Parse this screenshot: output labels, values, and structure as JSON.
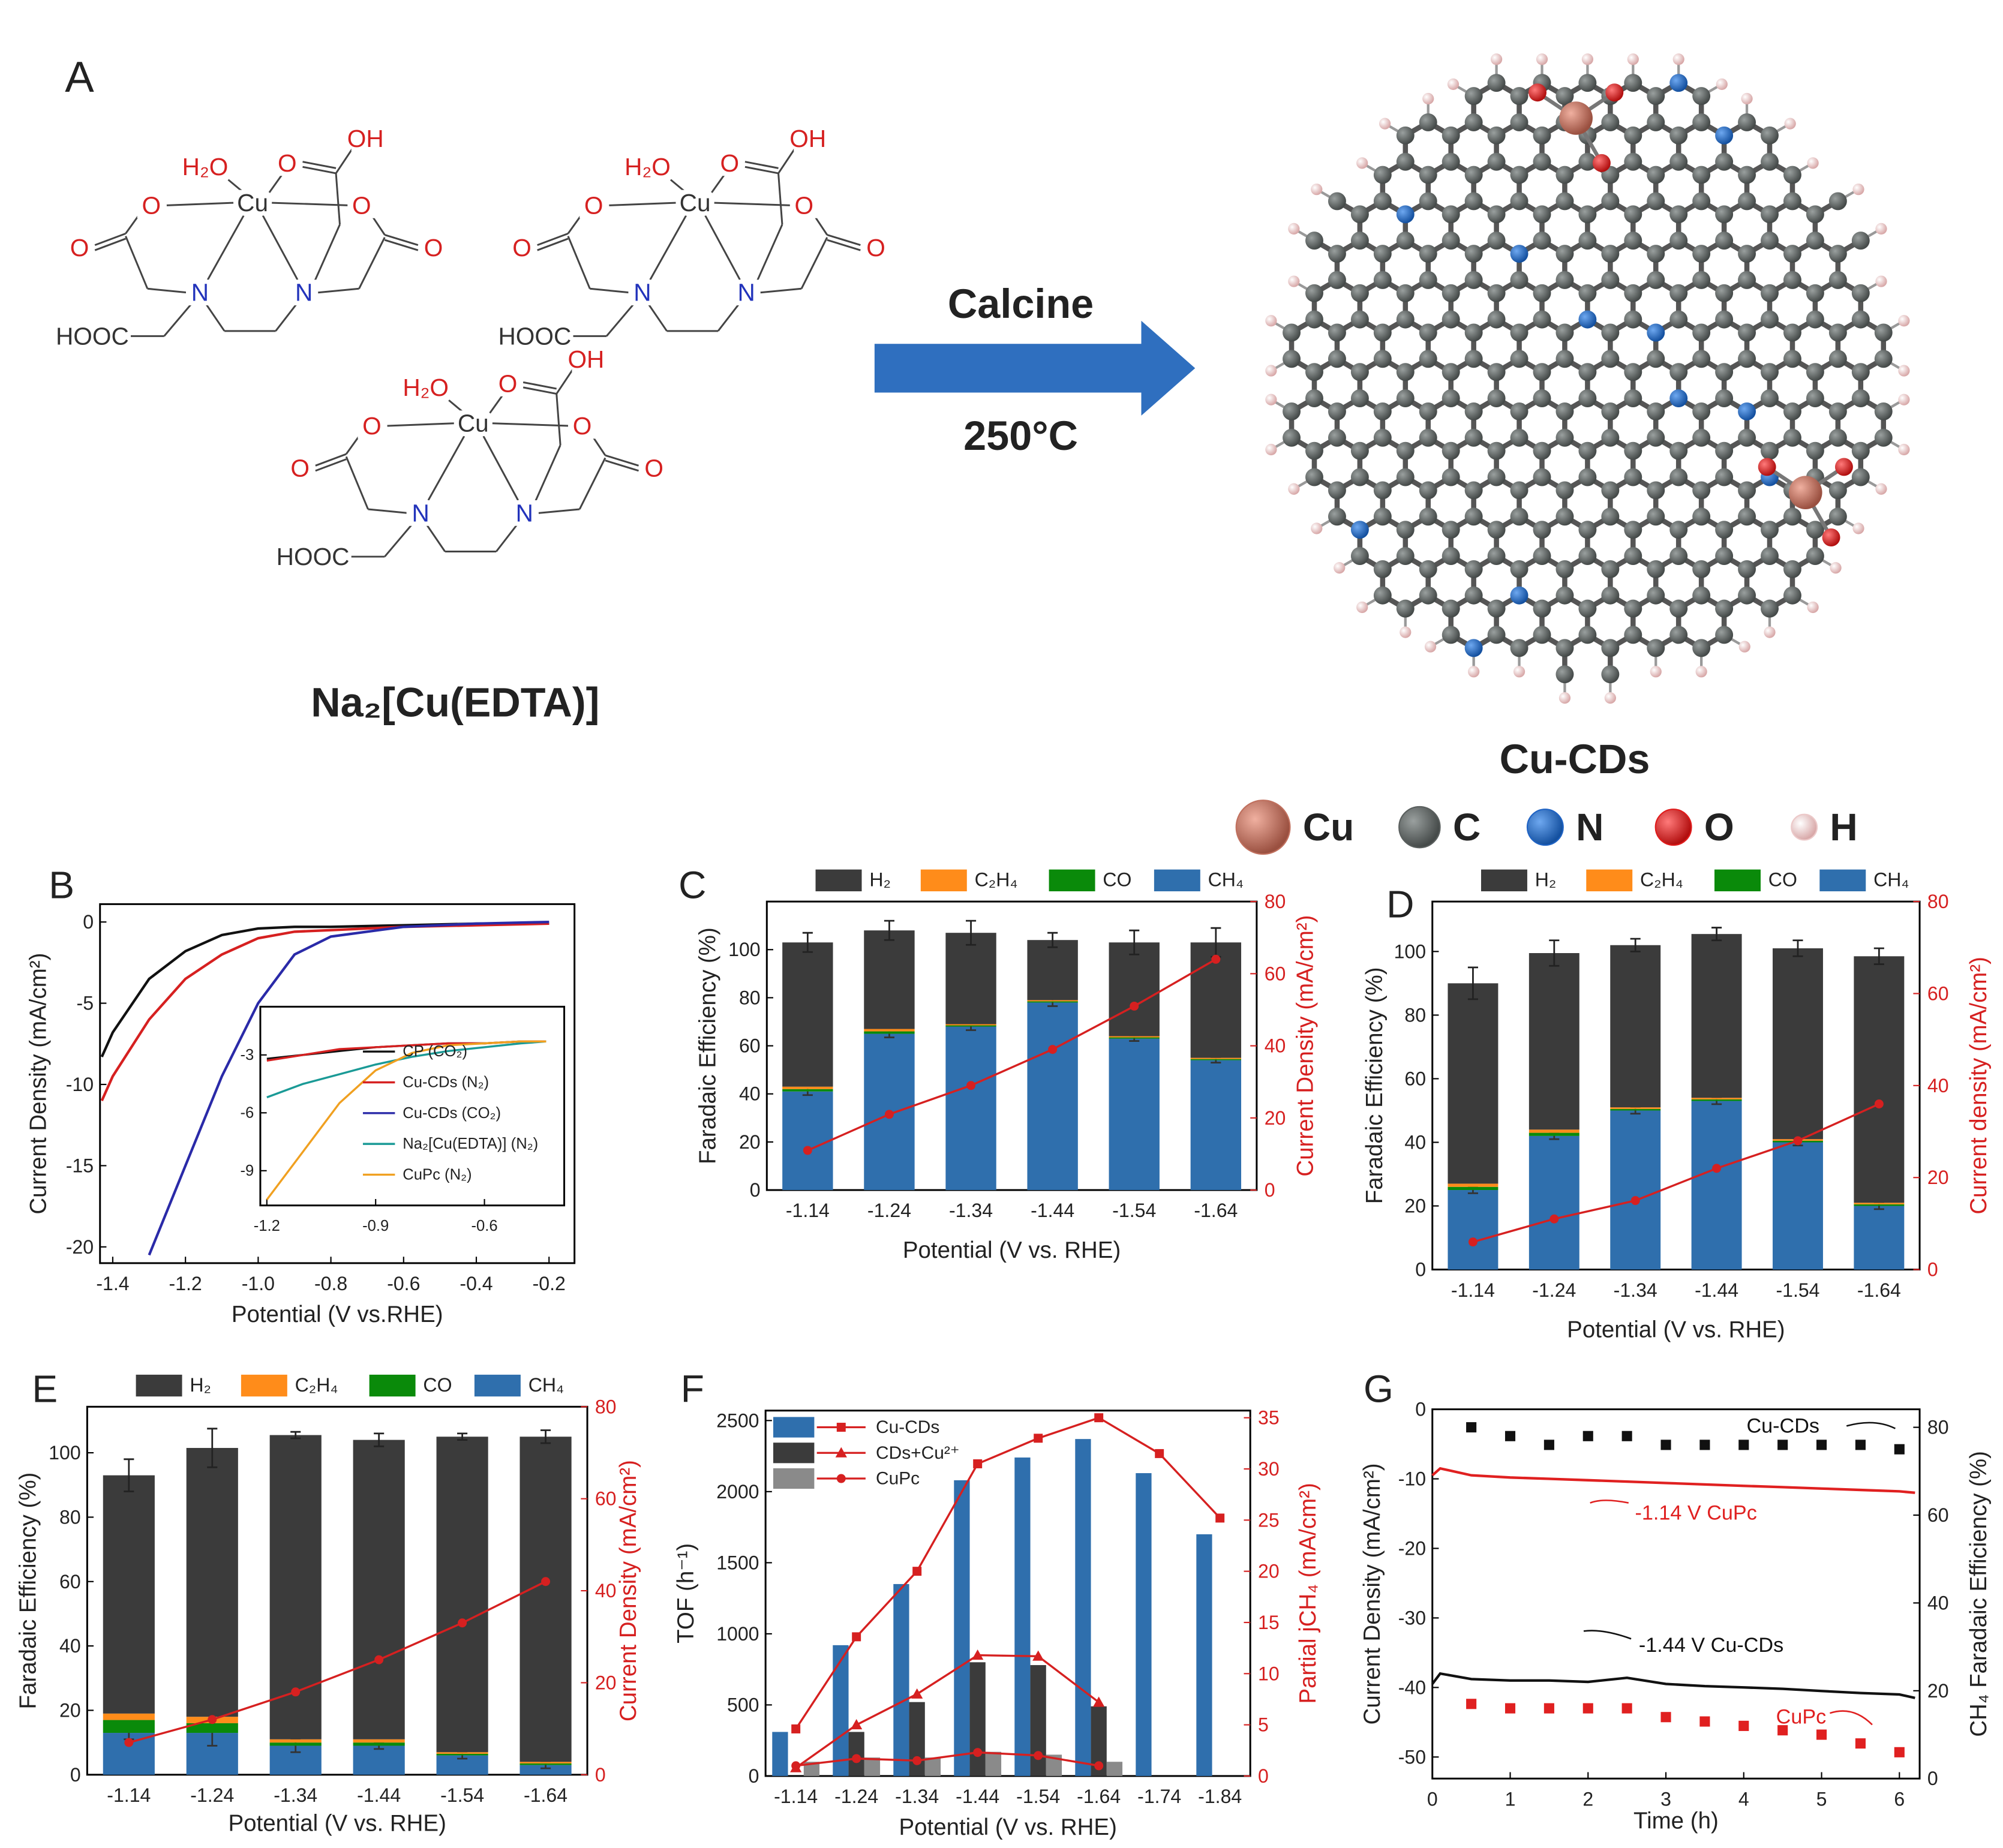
{
  "scheme": {
    "panel": "A",
    "structure_labels": [
      "H₂O",
      "Cu",
      "O",
      "OH",
      "O",
      "O",
      "O",
      "O",
      "N",
      "N",
      "HOOC"
    ],
    "precursor": "Na₂[Cu(EDTA)]",
    "arrow_top": "Calcine",
    "arrow_bottom": "250°C",
    "product": "Cu-CDs",
    "atoms": [
      {
        "name": "Cu",
        "color": "#c0705e"
      },
      {
        "name": "C",
        "color": "#5a5f5e"
      },
      {
        "name": "N",
        "color": "#1f63c4"
      },
      {
        "name": "O",
        "color": "#e01b1b"
      },
      {
        "name": "H",
        "color": "#ecc9c9"
      }
    ]
  },
  "chart_data": [
    {
      "type": "line",
      "panel": "B",
      "xlabel": "Potential (V vs.RHE)",
      "ylabel": "Current Density (mA/cm²)",
      "xlim": [
        -1.435,
        -0.13
      ],
      "xticks": [
        -1.4,
        -1.2,
        {
          "value": -1,
          "label": "-1.0"
        },
        -0.8,
        -0.6,
        -0.4,
        -0.2
      ],
      "ylim": [
        -21,
        1.1
      ],
      "yticks": [
        0,
        -5,
        -10,
        -15,
        -20
      ],
      "x": [
        -1.43,
        -1.4,
        -1.3,
        -1.2,
        -1.1,
        -1.0,
        -0.9,
        -0.8,
        -0.6,
        -0.4,
        -0.2
      ],
      "series": [
        {
          "color": "#111111",
          "values": [
            -8.3,
            -6.8,
            -3.5,
            -1.8,
            -0.8,
            -0.4,
            -0.3,
            -0.3,
            -0.2,
            -0.1,
            -0.1
          ]
        },
        {
          "color": "#d62020",
          "values": [
            -11,
            -9.5,
            -6,
            -3.5,
            -2,
            -1,
            -0.6,
            -0.5,
            -0.3,
            -0.2,
            -0.1
          ]
        },
        {
          "color": "#2a2aa8",
          "values": [
            null,
            null,
            -20.5,
            -15,
            -9.5,
            -5,
            -2,
            -0.9,
            -0.3,
            -0.1,
            0
          ]
        }
      ]
    },
    {
      "type": "line",
      "xlim": [
        -1.218,
        -0.38
      ],
      "xticks": [
        -1.2,
        -0.9,
        -0.6
      ],
      "ylim": [
        -10.8,
        -0.5
      ],
      "yticks": [
        -3,
        -6,
        -9
      ],
      "x": [
        -1.2,
        -1.1,
        -1.0,
        -0.9,
        -0.8,
        -0.7,
        -0.6,
        -0.5,
        -0.43
      ],
      "series": [
        {
          "name": "CP (CO₂)",
          "color": "#111111",
          "values": [
            -3.2,
            -3.0,
            -2.8,
            -2.6,
            -2.5,
            -2.4,
            -2.4,
            -2.3,
            -2.3
          ]
        },
        {
          "name": "Cu-CDs (N₂)",
          "color": "#d62020",
          "values": [
            -3.3,
            -3.0,
            -2.7,
            -2.6,
            -2.5,
            -2.4,
            -2.4,
            -2.3,
            -2.3
          ]
        },
        {
          "name": "Cu-CDs (CO₂)",
          "color": "#2a2aa8",
          "values": [
            null,
            null,
            null,
            null,
            null,
            null,
            null,
            null,
            null
          ]
        },
        {
          "name": "Na₂[Cu(EDTA)] (N₂)",
          "color": "#1a9a96",
          "values": [
            -5.2,
            -4.5,
            -4.0,
            -3.5,
            -3.1,
            -2.8,
            -2.6,
            -2.4,
            -2.3
          ]
        },
        {
          "name": "CuPc (N₂)",
          "color": "#f0a020",
          "values": [
            -10.5,
            -8,
            -5.5,
            -3.8,
            -2.9,
            -2.5,
            -2.4,
            -2.3,
            -2.3
          ]
        }
      ]
    },
    {
      "type": "bar",
      "stacked": true,
      "panel": "C",
      "xlabel": "Potential (V vs. RHE)",
      "ylabel": "Faradaic Efficiency (%)",
      "y2label": "Current Density (mA/cm²)",
      "y2_color": "#d62020",
      "categories": [
        "-1.14",
        "-1.24",
        "-1.34",
        "-1.44",
        "-1.54",
        "-1.64"
      ],
      "ylim": [
        0,
        120
      ],
      "yticks": [
        0,
        20,
        40,
        60,
        80,
        100
      ],
      "y2lim": [
        0,
        80
      ],
      "y2ticks": [
        0,
        20,
        40,
        60,
        80
      ],
      "series": [
        {
          "name": "H₂",
          "color": "#3b3b3b",
          "values": [
            60,
            41,
            38,
            25,
            39,
            48
          ],
          "errors": [
            4,
            4,
            5,
            3,
            5,
            6
          ]
        },
        {
          "name": "C₂H₄",
          "color": "#ff8c1a",
          "values": [
            1,
            1,
            0.5,
            0.5,
            0.5,
            0.5
          ]
        },
        {
          "name": "CO",
          "color": "#0a8a0a",
          "values": [
            1,
            1,
            0.5,
            0.5,
            0.5,
            0.5
          ]
        },
        {
          "name": "CH₄",
          "color": "#2f6fad",
          "values": [
            41,
            65,
            68,
            78,
            63,
            54
          ],
          "errors": [
            1.5,
            1.5,
            1.5,
            1.5,
            1,
            1
          ]
        },
        {
          "axis": "y2",
          "color": "#d62020",
          "values": [
            11,
            21,
            29,
            39,
            51,
            64
          ]
        }
      ]
    },
    {
      "type": "bar",
      "stacked": true,
      "panel": "D",
      "xlabel": "Potential (V vs. RHE)",
      "ylabel": "Faradaic Efficiency (%)",
      "y2label": "Current density (mA/cm²)",
      "y2_color": "#d62020",
      "categories": [
        "-1.14",
        "-1.24",
        "-1.34",
        "-1.44",
        "-1.54",
        "-1.64"
      ],
      "ylim": [
        0,
        115.7
      ],
      "yticks": [
        0,
        20,
        40,
        60,
        80,
        100
      ],
      "y2lim": [
        0,
        80
      ],
      "y2ticks": [
        0,
        20,
        40,
        60,
        80
      ],
      "series": [
        {
          "name": "H₂",
          "color": "#3b3b3b",
          "values": [
            63,
            55.5,
            51,
            51.5,
            60,
            77.5
          ],
          "errors": [
            5,
            4,
            2,
            2,
            2.5,
            2.5
          ]
        },
        {
          "name": "C₂H₄",
          "color": "#ff8c1a",
          "values": [
            1,
            1,
            0.5,
            0.5,
            0.5,
            0.5
          ]
        },
        {
          "name": "CO",
          "color": "#0a8a0a",
          "values": [
            1,
            1,
            0.5,
            0.5,
            0.5,
            0.5
          ]
        },
        {
          "name": "CH₄",
          "color": "#2f6fad",
          "values": [
            25,
            42,
            50,
            53,
            40,
            20
          ],
          "errors": [
            1,
            1,
            1,
            1,
            1,
            1
          ]
        },
        {
          "axis": "y2",
          "color": "#d62020",
          "values": [
            6,
            11,
            15,
            22,
            28,
            36
          ]
        }
      ]
    },
    {
      "type": "bar",
      "stacked": true,
      "panel": "E",
      "xlabel": "Potential (V vs. RHE)",
      "ylabel": "Faradaic Efficiency (%)",
      "y2label": "Current Density (mA/cm²)",
      "y2_color": "#d62020",
      "categories": [
        "-1.14",
        "-1.24",
        "-1.34",
        "-1.44",
        "-1.54",
        "-1.64"
      ],
      "ylim": [
        0,
        114.3
      ],
      "yticks": [
        0,
        20,
        40,
        60,
        80,
        100
      ],
      "y2lim": [
        0,
        80
      ],
      "y2ticks": [
        0,
        20,
        40,
        60,
        80
      ],
      "series": [
        {
          "name": "H₂",
          "color": "#3b3b3b",
          "values": [
            74,
            83.5,
            94.5,
            93,
            98,
            101
          ],
          "errors": [
            5,
            6,
            1,
            2,
            1,
            2
          ]
        },
        {
          "name": "C₂H₄",
          "color": "#ff8c1a",
          "values": [
            2,
            2,
            1,
            1,
            0.5,
            0.5
          ]
        },
        {
          "name": "CO",
          "color": "#0a8a0a",
          "values": [
            4,
            3,
            1,
            1,
            0.5,
            0.5
          ]
        },
        {
          "name": "CH₄",
          "color": "#2f6fad",
          "values": [
            13,
            13,
            9,
            9,
            6,
            3
          ],
          "errors": [
            2,
            4,
            2,
            1,
            1,
            1
          ]
        },
        {
          "axis": "y2",
          "color": "#d62020",
          "values": [
            7,
            12,
            18,
            25,
            33,
            42
          ]
        }
      ]
    },
    {
      "type": "bar",
      "stacked": false,
      "panel": "F",
      "xlabel": "Potential (V vs. RHE)",
      "ylabel": "TOF (h⁻¹)",
      "y2label": "Partial jCH₄ (mA/cm²)",
      "y2_color": "#d62020",
      "categories": [
        "-1.14",
        "-1.24",
        "-1.34",
        "-1.44",
        "-1.54",
        "-1.64",
        "-1.74",
        "-1.84"
      ],
      "ylim": [
        0,
        2570
      ],
      "yticks": [
        0,
        500,
        1000,
        1500,
        2000,
        2500
      ],
      "y2lim": [
        0,
        35.7
      ],
      "y2ticks": [
        0,
        5,
        10,
        15,
        20,
        25,
        30,
        35
      ],
      "series": [
        {
          "name": "Cu-CDs",
          "color": "#2f6fad",
          "line_color": "#d62020",
          "marker": "square",
          "values": [
            310,
            920,
            1350,
            2080,
            2240,
            2370,
            2130,
            1700
          ],
          "y2_values": [
            4.6,
            13.6,
            20,
            30.5,
            33,
            35,
            31.5,
            25.2
          ]
        },
        {
          "name": "CDs+Cu²⁺",
          "color": "#3b3b3b",
          "line_color": "#d62020",
          "marker": "triangle",
          "values": [
            null,
            310,
            520,
            800,
            780,
            490,
            null,
            null
          ],
          "y2_values": [
            0.8,
            5,
            8,
            11.8,
            11.7,
            7.2,
            null,
            null
          ]
        },
        {
          "name": "CuPc",
          "color": "#8a8a8a",
          "line_color": "#d62020",
          "marker": "circle",
          "values": [
            100,
            130,
            130,
            170,
            150,
            100,
            null,
            null
          ],
          "y2_values": [
            1,
            1.7,
            1.5,
            2.3,
            2,
            1,
            null,
            null
          ]
        }
      ]
    },
    {
      "type": "line",
      "panel": "G",
      "xlabel": "Time (h)",
      "ylabel": "Current Density (mA/cm²)",
      "y2label": "CH₄ Faradaic Efficiency (%)",
      "xlim": [
        0,
        6.26
      ],
      "xticks": [
        0,
        1,
        2,
        3,
        4,
        5,
        6
      ],
      "ylim": [
        -53.1,
        0
      ],
      "yticks": [
        0,
        -10,
        -20,
        -30,
        -40,
        -50
      ],
      "y2lim": [
        0,
        84.1
      ],
      "y2ticks": [
        0,
        20,
        40,
        60,
        80
      ],
      "series": [
        {
          "kind": "line",
          "color": "#e02020",
          "x": [
            0,
            0.1,
            0.5,
            1,
            1.5,
            2,
            2.5,
            3,
            3.5,
            4,
            4.5,
            5,
            5.5,
            6,
            6.2
          ],
          "values": [
            -9.5,
            -8.5,
            -9.5,
            -9.8,
            -10,
            -10.2,
            -10.4,
            -10.6,
            -10.8,
            -11,
            -11.2,
            -11.4,
            -11.6,
            -11.8,
            -12
          ]
        },
        {
          "kind": "line",
          "color": "#111111",
          "x": [
            0,
            0.1,
            0.5,
            1,
            1.5,
            2,
            2.5,
            3,
            3.5,
            4,
            4.5,
            5,
            5.5,
            6,
            6.2
          ],
          "values": [
            -39.5,
            -38,
            -38.8,
            -39,
            -39,
            -39.2,
            -38.6,
            -39.5,
            -39.8,
            -40,
            -40.2,
            -40.5,
            -40.8,
            -41,
            -41.5
          ]
        },
        {
          "kind": "scatter",
          "axis": "y2",
          "color": "#111111",
          "x": [
            0.5,
            1,
            1.5,
            2,
            2.5,
            3,
            3.5,
            4,
            4.5,
            5,
            5.5,
            6
          ],
          "values": [
            80,
            78,
            76,
            78,
            78,
            76,
            76,
            76,
            76,
            76,
            76,
            75
          ]
        },
        {
          "kind": "scatter",
          "axis": "y2",
          "color": "#e02020",
          "x": [
            0.5,
            1,
            1.5,
            2,
            2.5,
            3,
            3.5,
            4,
            4.5,
            5,
            5.5,
            6
          ],
          "values": [
            17,
            16,
            16,
            16,
            16,
            14,
            13,
            12,
            11,
            10,
            8,
            6
          ]
        }
      ],
      "annotations": [
        {
          "text": "Cu-CDs",
          "color": "#111111"
        },
        {
          "text": "-1.14 V CuPc",
          "color": "#e02020"
        },
        {
          "text": "-1.44 V Cu-CDs",
          "color": "#111111"
        },
        {
          "text": "CuPc",
          "color": "#e02020"
        }
      ]
    }
  ]
}
